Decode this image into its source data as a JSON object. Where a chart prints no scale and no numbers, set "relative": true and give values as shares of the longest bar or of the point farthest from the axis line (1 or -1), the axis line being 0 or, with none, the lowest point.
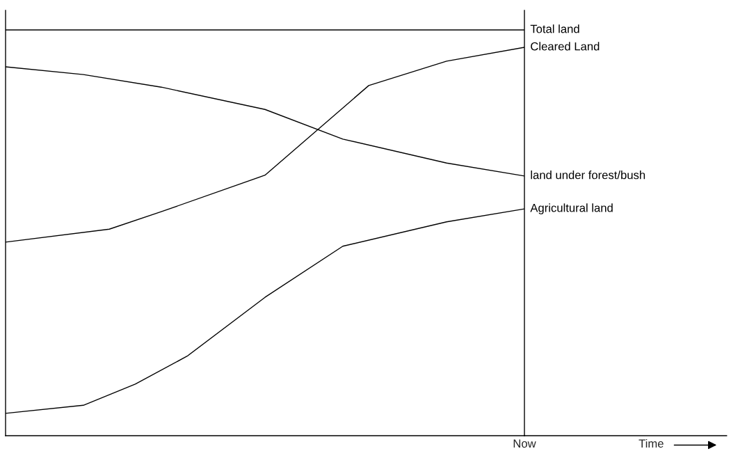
{
  "chart_data": {
    "type": "line",
    "relative": true,
    "marker": "none",
    "line_style": "solid",
    "annotations": [
      "Now",
      "Time"
    ],
    "categories": [
      null,
      null,
      null,
      null,
      null,
      null,
      null,
      null,
      null,
      null,
      null,
      null,
      null,
      null,
      null,
      null,
      null,
      null,
      null,
      null,
      null
    ],
    "series": [
      {
        "name": "Total land",
        "color": "#000000",
        "values": [
          1,
          1,
          1,
          1,
          1,
          1,
          1,
          1,
          1,
          1,
          1,
          1,
          1,
          1,
          1,
          1,
          1,
          1,
          1,
          1,
          1
        ]
      },
      {
        "name": "Cleared Land",
        "color": "#000000",
        "values": [
          0.477,
          null,
          null,
          null,
          0.509,
          null,
          0.552,
          null,
          null,
          null,
          0.642,
          null,
          null,
          null,
          0.863,
          null,
          null,
          0.923,
          null,
          null,
          0.957
        ]
      },
      {
        "name": "land under forest/bush",
        "color": "#000000",
        "values": [
          0.909,
          null,
          null,
          0.89,
          null,
          null,
          0.859,
          null,
          null,
          null,
          0.804,
          null,
          null,
          0.731,
          null,
          null,
          null,
          0.672,
          null,
          null,
          0.64
        ]
      },
      {
        "name": "Agricultural land",
        "color": "#000000",
        "values": [
          0.055,
          null,
          null,
          0.075,
          null,
          0.127,
          null,
          0.196,
          null,
          null,
          0.341,
          null,
          null,
          0.467,
          null,
          null,
          null,
          0.527,
          null,
          null,
          0.559
        ]
      }
    ]
  }
}
